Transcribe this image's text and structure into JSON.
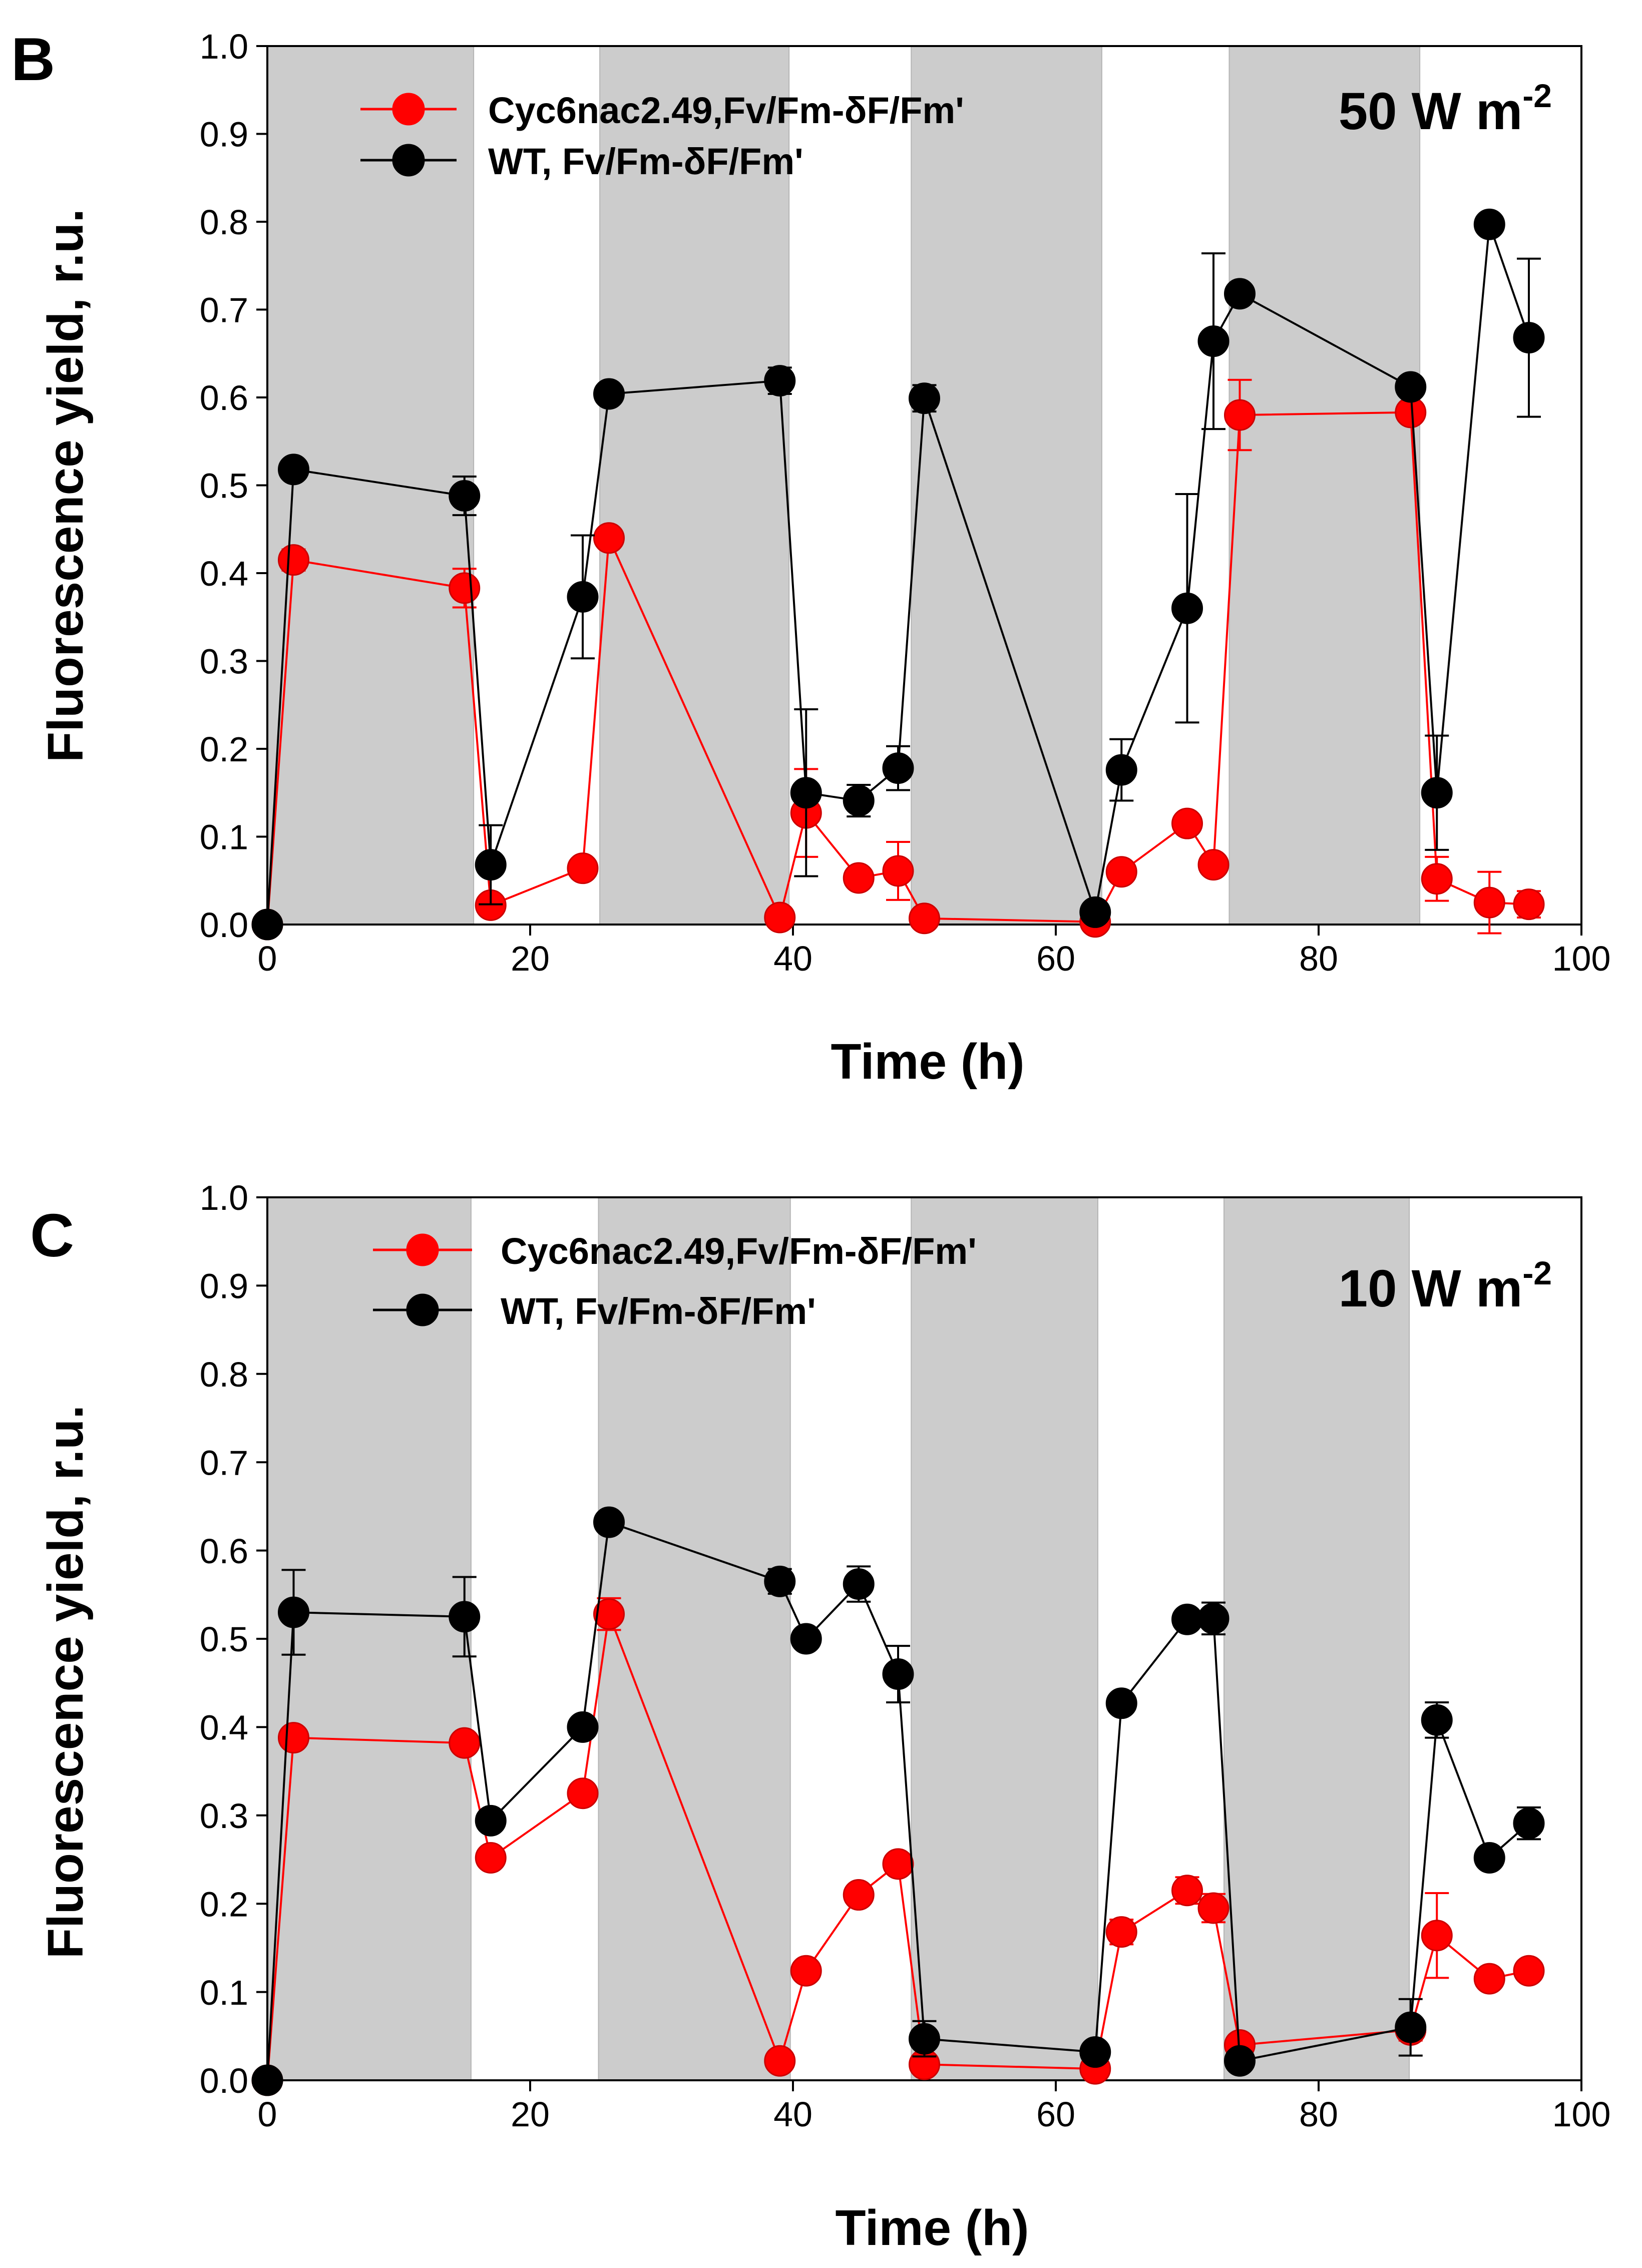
{
  "chart_data": [
    {
      "type": "line",
      "panel_label": "B",
      "annotation_main": "50 W m",
      "annotation_sup": "-2",
      "xlabel": "Time (h)",
      "ylabel": "Fluorescence yield, r.u.",
      "xlim": [
        0,
        100
      ],
      "ylim": [
        0,
        1.0
      ],
      "xticks": [
        0,
        20,
        40,
        60,
        80,
        100
      ],
      "yticks": [
        "0.0",
        "0.1",
        "0.2",
        "0.3",
        "0.4",
        "0.5",
        "0.6",
        "0.7",
        "0.8",
        "0.9",
        "1.0"
      ],
      "legend_position": "top-left",
      "dark_periods": [
        [
          0,
          15.7
        ],
        [
          25.3,
          39.7
        ],
        [
          49.0,
          63.5
        ],
        [
          73.2,
          87.7
        ]
      ],
      "series": [
        {
          "name": "Cyc6nac2.49,Fv/Fm-δF/Fm'",
          "color": "#ff0000",
          "x": [
            0,
            2,
            15,
            17,
            24,
            26,
            39,
            41,
            45,
            48,
            50,
            63,
            65,
            70,
            72,
            74,
            87,
            89,
            93,
            96
          ],
          "y": [
            0.0,
            0.415,
            0.383,
            0.022,
            0.064,
            0.44,
            0.008,
            0.127,
            0.053,
            0.061,
            0.007,
            0.003,
            0.06,
            0.115,
            0.068,
            0.58,
            0.583,
            0.052,
            0.025,
            0.023
          ],
          "err": [
            0,
            0.012,
            0.022,
            0.005,
            0.006,
            0.008,
            0.004,
            0.05,
            0.01,
            0.033,
            0.004,
            0.002,
            0.008,
            0.01,
            0.006,
            0.04,
            0.01,
            0.025,
            0.035,
            0.015
          ]
        },
        {
          "name": "WT, Fv/Fm-δF/Fm'",
          "color": "#000000",
          "x": [
            0,
            2,
            15,
            17,
            24,
            26,
            39,
            41,
            45,
            48,
            50,
            63,
            65,
            70,
            72,
            74,
            87,
            89,
            93,
            96
          ],
          "y": [
            0.0,
            0.518,
            0.488,
            0.068,
            0.373,
            0.604,
            0.619,
            0.15,
            0.141,
            0.178,
            0.599,
            0.014,
            0.176,
            0.36,
            0.664,
            0.718,
            0.612,
            0.15,
            0.797,
            0.668
          ],
          "err": [
            0,
            0.01,
            0.022,
            0.045,
            0.07,
            0.008,
            0.015,
            0.095,
            0.018,
            0.025,
            0.015,
            0.006,
            0.035,
            0.13,
            0.1,
            0.008,
            0.008,
            0.065,
            0.005,
            0.09
          ]
        }
      ]
    },
    {
      "type": "line",
      "panel_label": "C",
      "annotation_main": "10 W m",
      "annotation_sup": "-2",
      "xlabel": "Time (h)",
      "ylabel": "Fluorescence yield, r.u.",
      "xlim": [
        0,
        100
      ],
      "ylim": [
        0,
        1.0
      ],
      "xticks": [
        0,
        20,
        40,
        60,
        80,
        100
      ],
      "yticks": [
        "0.0",
        "0.1",
        "0.2",
        "0.3",
        "0.4",
        "0.5",
        "0.6",
        "0.7",
        "0.8",
        "0.9",
        "1.0"
      ],
      "legend_position": "top-left",
      "dark_periods": [
        [
          0,
          15.5
        ],
        [
          25.2,
          39.8
        ],
        [
          49.0,
          63.2
        ],
        [
          72.8,
          86.9
        ]
      ],
      "series": [
        {
          "name": "Cyc6nac2.49,Fv/Fm-δF/Fm'",
          "color": "#ff0000",
          "x": [
            0,
            2,
            15,
            17,
            24,
            26,
            39,
            41,
            45,
            48,
            50,
            63,
            65,
            70,
            72,
            74,
            87,
            89,
            93,
            96
          ],
          "y": [
            0.0,
            0.388,
            0.382,
            0.252,
            0.325,
            0.528,
            0.022,
            0.124,
            0.21,
            0.245,
            0.018,
            0.013,
            0.168,
            0.215,
            0.195,
            0.04,
            0.057,
            0.164,
            0.115,
            0.124
          ],
          "err": [
            0,
            0.006,
            0.006,
            0.004,
            0.006,
            0.018,
            0.004,
            0.004,
            0.005,
            0.005,
            0.004,
            0.003,
            0.014,
            0.015,
            0.016,
            0.008,
            0.012,
            0.048,
            0.003,
            0.004
          ]
        },
        {
          "name": "WT, Fv/Fm-δF/Fm'",
          "color": "#000000",
          "x": [
            0,
            2,
            15,
            17,
            24,
            26,
            39,
            41,
            45,
            48,
            50,
            63,
            65,
            70,
            72,
            74,
            87,
            89,
            93,
            96
          ],
          "y": [
            0.0,
            0.53,
            0.525,
            0.294,
            0.4,
            0.632,
            0.565,
            0.5,
            0.562,
            0.46,
            0.047,
            0.032,
            0.427,
            0.522,
            0.523,
            0.022,
            0.06,
            0.408,
            0.252,
            0.291
          ],
          "err": [
            0,
            0.048,
            0.045,
            0.004,
            0.004,
            0.004,
            0.014,
            0.004,
            0.02,
            0.032,
            0.02,
            0.003,
            0.004,
            0.01,
            0.018,
            0.004,
            0.032,
            0.02,
            0.003,
            0.018
          ]
        }
      ]
    }
  ]
}
